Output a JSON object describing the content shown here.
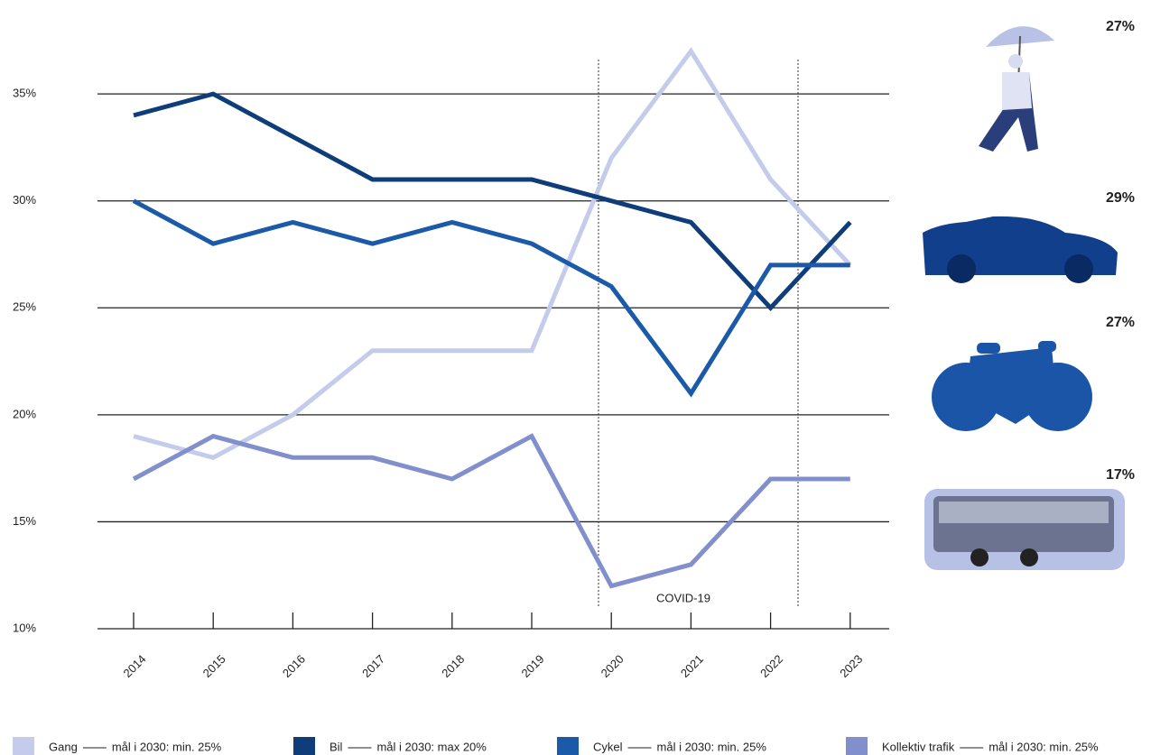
{
  "chart_data": {
    "type": "line",
    "categories": [
      "2014",
      "2015",
      "2016",
      "2017",
      "2018",
      "2019",
      "2020",
      "2021",
      "2022",
      "2023"
    ],
    "series": [
      {
        "name": "Gang",
        "target": "mål i 2030: min. 25%",
        "color": "#c5cbea",
        "values": [
          19,
          18,
          20,
          23,
          23,
          23,
          32,
          37,
          31,
          27
        ]
      },
      {
        "name": "Bil",
        "target": "mål i 2030: max 20%",
        "color": "#0f3d7a",
        "values": [
          34,
          35,
          33,
          31,
          31,
          31,
          30,
          29,
          25,
          29
        ]
      },
      {
        "name": "Cykel",
        "target": "mål i 2030: min. 25%",
        "color": "#1a5aa8",
        "values": [
          30,
          28,
          29,
          28,
          29,
          28,
          26,
          21,
          27,
          27
        ]
      },
      {
        "name": "Kollektiv trafik",
        "target": "mål i 2030: min. 25%",
        "color": "#8190cc",
        "values": [
          17,
          19,
          18,
          18,
          17,
          19,
          12,
          13,
          17,
          17
        ]
      }
    ],
    "ylim": [
      10,
      38
    ],
    "yticks": [
      {
        "value": 10,
        "label": "10%"
      },
      {
        "value": 15,
        "label": "15%"
      },
      {
        "value": 20,
        "label": "20%"
      },
      {
        "value": 25,
        "label": "25%"
      },
      {
        "value": 30,
        "label": "30%"
      },
      {
        "value": 35,
        "label": "35%"
      }
    ],
    "grid": true,
    "annotation": "COVID-19",
    "end_labels": [
      "27%",
      "29%",
      "27%",
      "17%"
    ]
  }
}
